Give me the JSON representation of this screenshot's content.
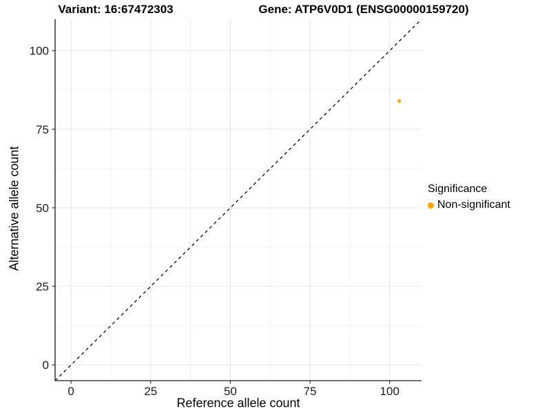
{
  "header": {
    "left_title": "Variant: 16:67472303",
    "right_title": "Gene: ATP6V0D1 (ENSG00000159720)"
  },
  "legend": {
    "title": "Significance",
    "items": [
      {
        "label": "Non-significant",
        "color": "#FFA500",
        "marker": "circle"
      }
    ]
  },
  "chart_data": {
    "type": "scatter",
    "title_left": "Variant: 16:67472303",
    "title_right": "Gene: ATP6V0D1 (ENSG00000159720)",
    "xlabel": "Reference allele count",
    "ylabel": "Alternative allele count",
    "xlim": [
      -5,
      110
    ],
    "ylim": [
      -5,
      110
    ],
    "x_ticks": [
      0,
      25,
      50,
      75,
      100
    ],
    "y_ticks": [
      0,
      25,
      50,
      75,
      100
    ],
    "x_minor_ticks": [
      12.5,
      37.5,
      62.5,
      87.5
    ],
    "y_minor_ticks": [
      12.5,
      37.5,
      62.5,
      87.5
    ],
    "grid": true,
    "legend_position": "right",
    "reference_line": {
      "type": "identity",
      "style": "dashed",
      "color": "#000000"
    },
    "series": [
      {
        "name": "Non-significant",
        "color": "#FFA500",
        "points": [
          {
            "x": 103,
            "y": 84
          }
        ]
      }
    ],
    "colors": {
      "point": "#FFA500",
      "grid_major": "#E3E3E3",
      "grid_minor": "#EFEFEF",
      "axis_line": "#3F3F3F",
      "tick_mark": "#333333",
      "tick_text": "#1A1A1A",
      "reference_line": "#000000"
    }
  }
}
